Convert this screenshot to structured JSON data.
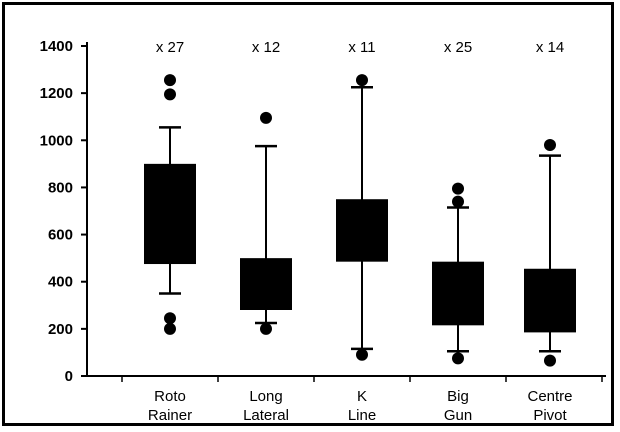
{
  "chart_data": {
    "type": "boxplot",
    "y_ticks": [
      0,
      200,
      400,
      600,
      800,
      1000,
      1200,
      1400
    ],
    "ylim": [
      0,
      1400
    ],
    "grid": false,
    "categories": [
      {
        "line1": "Roto",
        "line2": "Rainer",
        "count": "x 27",
        "whisker_low": 350,
        "q1": 475,
        "q3": 900,
        "whisker_high": 1055,
        "outliers": [
          200,
          245,
          1195,
          1255
        ]
      },
      {
        "line1": "Long",
        "line2": "Lateral",
        "count": "x 12",
        "whisker_low": 225,
        "q1": 280,
        "q3": 500,
        "whisker_high": 975,
        "outliers": [
          200,
          1095
        ]
      },
      {
        "line1": "K",
        "line2": "Line",
        "count": "x 11",
        "whisker_low": 115,
        "q1": 485,
        "q3": 750,
        "whisker_high": 1225,
        "outliers": [
          90,
          1255
        ]
      },
      {
        "line1": "Big",
        "line2": "Gun",
        "count": "x 25",
        "whisker_low": 105,
        "q1": 215,
        "q3": 485,
        "whisker_high": 715,
        "outliers": [
          75,
          740,
          795
        ]
      },
      {
        "line1": "Centre",
        "line2": "Pivot",
        "count": "x 14",
        "whisker_low": 105,
        "q1": 185,
        "q3": 455,
        "whisker_high": 935,
        "outliers": [
          65,
          980
        ]
      }
    ]
  }
}
